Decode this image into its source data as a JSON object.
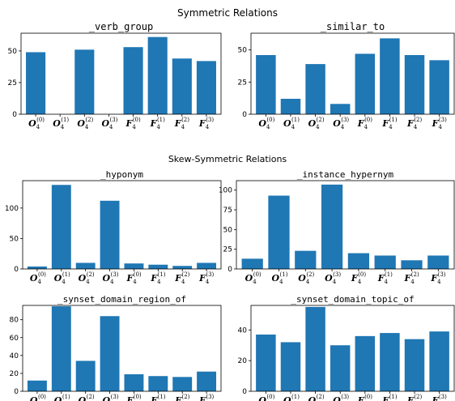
{
  "sections": [
    {
      "title": "Symmetric Relations"
    },
    {
      "title": "Skew-Symmetric Relations"
    }
  ],
  "bar_color": "#1f77b4",
  "tick_groups": [
    "O",
    "O",
    "O",
    "O",
    "F",
    "F",
    "F",
    "F"
  ],
  "tick_subs": [
    "4",
    "4",
    "4",
    "4",
    "4",
    "4",
    "4",
    "4"
  ],
  "tick_sups": [
    "(0)",
    "(1)",
    "(2)",
    "(3)",
    "(0)",
    "(1)",
    "(2)",
    "(3)"
  ],
  "chart_data": [
    {
      "type": "bar",
      "title": "_verb_group",
      "categories": [
        "O4(0)",
        "O4(1)",
        "O4(2)",
        "O4(3)",
        "F4(0)",
        "F4(1)",
        "F4(2)",
        "F4(3)"
      ],
      "values": [
        49,
        0,
        51,
        0,
        53,
        61,
        44,
        42
      ],
      "ylim": [
        0,
        64
      ],
      "yticks": [
        0,
        25,
        50
      ]
    },
    {
      "type": "bar",
      "title": "_similar_to",
      "categories": [
        "O4(0)",
        "O4(1)",
        "O4(2)",
        "O4(3)",
        "F4(0)",
        "F4(1)",
        "F4(2)",
        "F4(3)"
      ],
      "values": [
        46,
        12,
        39,
        8,
        47,
        59,
        46,
        42
      ],
      "ylim": [
        0,
        63
      ],
      "yticks": [
        0,
        25,
        50
      ]
    },
    {
      "type": "bar",
      "title": "_hyponym",
      "categories": [
        "O4(0)",
        "O4(1)",
        "O4(2)",
        "O4(3)",
        "F4(0)",
        "F4(1)",
        "F4(2)",
        "F4(3)"
      ],
      "values": [
        4,
        138,
        10,
        112,
        9,
        7,
        5,
        10
      ],
      "ylim": [
        0,
        145
      ],
      "yticks": [
        0,
        50,
        100
      ]
    },
    {
      "type": "bar",
      "title": "_instance_hypernym",
      "categories": [
        "O4(0)",
        "O4(1)",
        "O4(2)",
        "O4(3)",
        "F4(0)",
        "F4(1)",
        "F4(2)",
        "F4(3)"
      ],
      "values": [
        13,
        93,
        23,
        107,
        20,
        17,
        11,
        17
      ],
      "ylim": [
        0,
        112
      ],
      "yticks": [
        0,
        25,
        50,
        75,
        100
      ]
    },
    {
      "type": "bar",
      "title": "_synset_domain_region_of",
      "categories": [
        "O4(0)",
        "O4(1)",
        "O4(2)",
        "O4(3)",
        "F4(0)",
        "F4(1)",
        "F4(2)",
        "F4(3)"
      ],
      "values": [
        12,
        95,
        34,
        84,
        19,
        17,
        16,
        22
      ],
      "ylim": [
        0,
        96
      ],
      "yticks": [
        0,
        20,
        40,
        60,
        80
      ]
    },
    {
      "type": "bar",
      "title": "_synset_domain_topic_of",
      "categories": [
        "O4(0)",
        "O4(1)",
        "O4(2)",
        "O4(3)",
        "F4(0)",
        "F4(1)",
        "F4(2)",
        "F4(3)"
      ],
      "values": [
        37,
        32,
        55,
        30,
        36,
        38,
        34,
        39
      ],
      "ylim": [
        0,
        56
      ],
      "yticks": [
        0,
        20,
        40
      ]
    }
  ]
}
